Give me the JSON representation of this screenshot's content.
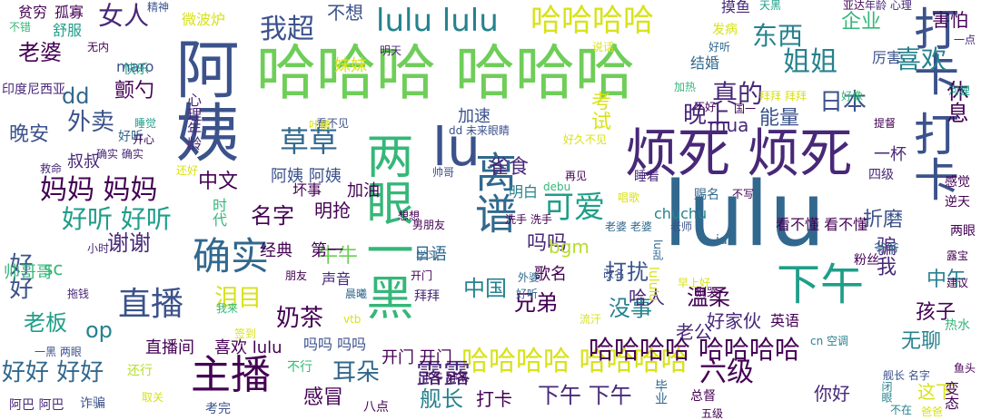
{
  "palette": {
    "dark_purple": "#440154",
    "indigo": "#482878",
    "blue": "#3b528b",
    "slate": "#31688e",
    "teal": "#26828e",
    "sea": "#1f9e89",
    "green": "#35b779",
    "lime": "#6ece58",
    "yellow_green": "#b5de2b",
    "yellow": "#d8e219"
  },
  "words": [
    {
      "text": "lulu",
      "c": "slate"
    },
    {
      "text": "哈哈哈 哈哈哈",
      "c": "lime"
    },
    {
      "text": "阿姨",
      "c": "blue"
    },
    {
      "text": "烦死 烦死",
      "c": "indigo"
    },
    {
      "text": "打卡 打卡",
      "c": "blue"
    },
    {
      "text": "下午",
      "c": "sea"
    },
    {
      "text": "lu",
      "c": "blue"
    },
    {
      "text": "两眼一黑",
      "c": "green"
    },
    {
      "text": "离谱",
      "c": "slate"
    },
    {
      "text": "哈哈哈哈",
      "c": "yellow"
    },
    {
      "text": "lulu lulu",
      "c": "teal"
    },
    {
      "text": "哈哈哈哈 哈哈哈哈",
      "c": "yellow"
    },
    {
      "text": "哈哈哈哈 哈哈哈哈",
      "c": "dark_purple"
    },
    {
      "text": "主播",
      "c": "dark_purple"
    },
    {
      "text": "确实",
      "c": "slate"
    },
    {
      "text": "直播",
      "c": "blue"
    },
    {
      "text": "妈妈 妈妈",
      "c": "dark_purple"
    },
    {
      "text": "好听 好听",
      "c": "sea"
    },
    {
      "text": "好好 好好",
      "c": "slate"
    },
    {
      "text": "露露",
      "c": "indigo"
    },
    {
      "text": "可爱",
      "c": "sea"
    },
    {
      "text": "草草",
      "c": "slate"
    },
    {
      "text": "我超",
      "c": "blue"
    },
    {
      "text": "女人",
      "c": "indigo"
    },
    {
      "text": "姐姐",
      "c": "teal"
    },
    {
      "text": "喜欢",
      "c": "teal"
    },
    {
      "text": "东西",
      "c": "teal"
    },
    {
      "text": "真的",
      "c": "indigo"
    },
    {
      "text": "晚上",
      "c": "indigo"
    },
    {
      "text": "日本",
      "c": "blue"
    },
    {
      "text": "能量",
      "c": "blue"
    },
    {
      "text": "休息",
      "c": "dark_purple"
    },
    {
      "text": "企业",
      "c": "green"
    },
    {
      "text": "害怕",
      "c": "dark_purple"
    },
    {
      "text": "六级",
      "c": "dark_purple"
    },
    {
      "text": "舰长",
      "c": "teal"
    },
    {
      "text": "下午 下午",
      "c": "indigo"
    },
    {
      "text": "耳朵",
      "c": "slate"
    },
    {
      "text": "感冒",
      "c": "dark_purple"
    },
    {
      "text": "老板",
      "c": "sea"
    },
    {
      "text": "op",
      "c": "teal"
    },
    {
      "text": "泪目",
      "c": "yellow"
    },
    {
      "text": "奶茶",
      "c": "dark_purple"
    },
    {
      "text": "名字",
      "c": "dark_purple"
    },
    {
      "text": "中文",
      "c": "dark_purple"
    },
    {
      "text": "外卖",
      "c": "blue"
    },
    {
      "text": "dd",
      "c": "slate"
    },
    {
      "text": "晚安",
      "c": "blue"
    },
    {
      "text": "谢谢",
      "c": "indigo"
    },
    {
      "text": "好好",
      "c": "blue"
    },
    {
      "text": "sc",
      "c": "green"
    },
    {
      "text": "老婆",
      "c": "dark_purple"
    },
    {
      "text": "牛牛",
      "c": "lime"
    },
    {
      "text": "中国",
      "c": "teal"
    },
    {
      "text": "打扰",
      "c": "blue"
    },
    {
      "text": "兄弟",
      "c": "dark_purple"
    },
    {
      "text": "没事",
      "c": "teal"
    },
    {
      "text": "温柔",
      "c": "dark_purple"
    },
    {
      "text": "骗我",
      "c": "indigo"
    },
    {
      "text": "孩子",
      "c": "dark_purple"
    },
    {
      "text": "中午",
      "c": "teal"
    },
    {
      "text": "无聊",
      "c": "teal"
    },
    {
      "text": "折磨",
      "c": "blue"
    },
    {
      "text": "雀食",
      "c": "indigo"
    },
    {
      "text": "吗吗",
      "c": "indigo"
    },
    {
      "text": "考试",
      "c": "yellow"
    },
    {
      "text": "颤勺",
      "c": "dark_purple"
    },
    {
      "text": "不想",
      "c": "blue"
    },
    {
      "text": "叔叔",
      "c": "indigo"
    },
    {
      "text": "明抢",
      "c": "dark_purple"
    },
    {
      "text": "bgm",
      "c": "yellow_green"
    },
    {
      "text": "哈人",
      "c": "indigo"
    },
    {
      "text": "老公",
      "c": "indigo"
    },
    {
      "text": "英语",
      "c": "dark_purple"
    },
    {
      "text": "好家伙",
      "c": "indigo"
    },
    {
      "text": "直播间",
      "c": "dark_purple"
    },
    {
      "text": "喜欢 lulu",
      "c": "dark_purple"
    },
    {
      "text": "吗吗 吗吗",
      "c": "blue"
    },
    {
      "text": "开门 开门",
      "c": "dark_purple"
    },
    {
      "text": "打卡",
      "c": "dark_purple"
    },
    {
      "text": "你好",
      "c": "indigo"
    },
    {
      "text": "这下",
      "c": "yellow"
    },
    {
      "text": "歌名",
      "c": "dark_purple"
    },
    {
      "text": "日语",
      "c": "slate"
    },
    {
      "text": "经典",
      "c": "dark_purple"
    },
    {
      "text": "第一",
      "c": "dark_purple"
    },
    {
      "text": "加油",
      "c": "dark_purple"
    },
    {
      "text": "阿姨 阿姨",
      "c": "blue"
    },
    {
      "text": "妹妹",
      "c": "yellow"
    },
    {
      "text": "mua",
      "c": "indigo"
    },
    {
      "text": "一杯",
      "c": "indigo"
    },
    {
      "text": "帅哥哥",
      "c": "green"
    },
    {
      "text": "加速",
      "c": "blue"
    },
    {
      "text": "结婚",
      "c": "slate"
    },
    {
      "text": "摸鱼",
      "c": "indigo"
    },
    {
      "text": "厉害",
      "c": "blue"
    },
    {
      "text": "maro",
      "c": "blue"
    },
    {
      "text": "贫穷",
      "c": "dark_purple"
    },
    {
      "text": "孤寡",
      "c": "dark_purple"
    },
    {
      "text": "舒服",
      "c": "sea"
    },
    {
      "text": "微波炉",
      "c": "yellow"
    },
    {
      "text": "印度尼西亚",
      "c": "indigo"
    },
    {
      "text": "快乐",
      "c": "sea"
    },
    {
      "text": "好听",
      "c": "slate"
    },
    {
      "text": "睡着",
      "c": "indigo"
    },
    {
      "text": "心理年龄",
      "c": "indigo"
    },
    {
      "text": "时代",
      "c": "green"
    },
    {
      "text": "坏事",
      "c": "dark_purple"
    },
    {
      "text": "明白",
      "c": "teal"
    },
    {
      "text": "声音",
      "c": "indigo"
    },
    {
      "text": "感觉",
      "c": "dark_purple"
    },
    {
      "text": "逆天",
      "c": "dark_purple"
    },
    {
      "text": "两眼",
      "c": "dark_purple"
    },
    {
      "text": "四级",
      "c": "indigo"
    },
    {
      "text": "粉丝",
      "c": "dark_purple"
    },
    {
      "text": "热水",
      "c": "green"
    },
    {
      "text": "朋友",
      "c": "dark_purple"
    },
    {
      "text": "不行",
      "c": "green"
    },
    {
      "text": "还行",
      "c": "yellow_green"
    },
    {
      "text": "诈骗",
      "c": "blue"
    },
    {
      "text": "阿巴 阿巴",
      "c": "indigo"
    },
    {
      "text": "考完",
      "c": "blue"
    },
    {
      "text": "八点",
      "c": "dark_purple"
    },
    {
      "text": "毕业",
      "c": "slate"
    },
    {
      "text": "总督",
      "c": "dark_purple"
    },
    {
      "text": "五级",
      "c": "dark_purple"
    },
    {
      "text": "变态",
      "c": "dark_purple"
    },
    {
      "text": "闭眼",
      "c": "teal"
    },
    {
      "text": "不在",
      "c": "teal"
    },
    {
      "text": "爸爸",
      "c": "yellow"
    },
    {
      "text": "亚达",
      "c": "dark_purple"
    },
    {
      "text": "年龄 心理",
      "c": "indigo"
    },
    {
      "text": "一点",
      "c": "indigo"
    },
    {
      "text": "精神",
      "c": "blue"
    },
    {
      "text": "天黑",
      "c": "sea"
    },
    {
      "text": "发病",
      "c": "yellow"
    },
    {
      "text": "好听",
      "c": "slate"
    },
    {
      "text": "明天",
      "c": "indigo"
    },
    {
      "text": "说话",
      "c": "yellow"
    },
    {
      "text": "无内",
      "c": "dark_purple"
    },
    {
      "text": "不错",
      "c": "green"
    },
    {
      "text": "开心",
      "c": "dark_purple"
    },
    {
      "text": "睡觉",
      "c": "sea"
    },
    {
      "text": "确实 确实",
      "c": "indigo"
    },
    {
      "text": "救命",
      "c": "indigo"
    },
    {
      "text": "还好",
      "c": "yellow"
    },
    {
      "text": "帅哥",
      "c": "blue"
    },
    {
      "text": "小时",
      "c": "indigo"
    },
    {
      "text": "拖钱",
      "c": "indigo"
    },
    {
      "text": "我来",
      "c": "green"
    },
    {
      "text": "晨曦",
      "c": "slate"
    },
    {
      "text": "vtb",
      "c": "yellow"
    },
    {
      "text": "签到",
      "c": "yellow"
    },
    {
      "text": "流汗",
      "c": "yellow"
    },
    {
      "text": "下午 好来",
      "c": "dark_purple"
    },
    {
      "text": "拜拜",
      "c": "indigo"
    },
    {
      "text": "唱歌",
      "c": "yellow"
    },
    {
      "text": "学习",
      "c": "slate"
    },
    {
      "text": "想想",
      "c": "dark_purple"
    },
    {
      "text": "开门",
      "c": "dark_purple"
    },
    {
      "text": "外婆",
      "c": "slate"
    },
    {
      "text": "改名",
      "c": "blue"
    },
    {
      "text": "debu",
      "c": "green"
    },
    {
      "text": "再见",
      "c": "dark_purple"
    },
    {
      "text": "洗手 洗手",
      "c": "dark_purple"
    },
    {
      "text": "老婆 老婆",
      "c": "slate"
    },
    {
      "text": "老师",
      "c": "blue"
    },
    {
      "text": "好久不见",
      "c": "yellow"
    },
    {
      "text": "dd 未来眼睛",
      "c": "blue"
    },
    {
      "text": "看不见",
      "c": "blue"
    },
    {
      "text": "叶槽",
      "c": "yellow"
    },
    {
      "text": "加热",
      "c": "green"
    },
    {
      "text": "拜拜 拜拜",
      "c": "yellow"
    },
    {
      "text": "好像",
      "c": "green"
    },
    {
      "text": "河狸",
      "c": "sea"
    },
    {
      "text": "提督",
      "c": "dark_purple"
    },
    {
      "text": "国一",
      "c": "dark_purple"
    },
    {
      "text": "不好",
      "c": "dark_purple"
    },
    {
      "text": "看不懂 看不懂",
      "c": "dark_purple"
    },
    {
      "text": "不写",
      "c": "dark_purple"
    },
    {
      "text": "赐名",
      "c": "slate"
    },
    {
      "text": "chuchu",
      "c": "teal"
    },
    {
      "text": "id",
      "c": "slate"
    },
    {
      "text": "早上好",
      "c": "yellow"
    },
    {
      "text": "别哭",
      "c": "dark_purple"
    },
    {
      "text": "lululu",
      "c": "yellow"
    },
    {
      "text": "爷爷",
      "c": "slate"
    },
    {
      "text": "露宝",
      "c": "dark_purple"
    },
    {
      "text": "建议",
      "c": "dark_purple"
    },
    {
      "text": "cn 空调",
      "c": "teal"
    },
    {
      "text": "舰长 名字",
      "c": "blue"
    },
    {
      "text": "鱼头",
      "c": "dark_purple"
    },
    {
      "text": "一黑 两眼",
      "c": "blue"
    },
    {
      "text": "取关",
      "c": "yellow"
    },
    {
      "text": "男朋友",
      "c": "dark_purple"
    },
    {
      "text": "好听",
      "c": "slate"
    },
    {
      "text": "lu乱",
      "c": "slate"
    }
  ]
}
